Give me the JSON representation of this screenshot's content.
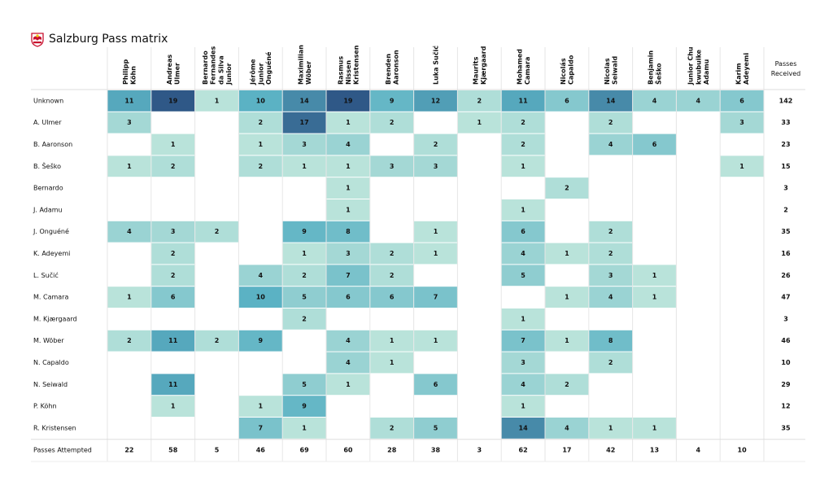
{
  "title": "Salzburg Pass matrix",
  "logo_icon": "red-bull-salzburg-crest",
  "chart_data": {
    "type": "heatmap",
    "title": "Salzburg Pass matrix",
    "columns": [
      [
        "Philipp",
        "Köhn"
      ],
      [
        "Andreas",
        "Ulmer"
      ],
      [
        "Bernardo",
        "Fernandes",
        "da Silva",
        "Junior"
      ],
      [
        "Jérôme",
        "Junior",
        "Onguéné"
      ],
      [
        "Maximilian",
        "Wöber"
      ],
      [
        "Rasmus",
        "Nissen",
        "Kristensen"
      ],
      [
        "Brenden",
        "Aaronson"
      ],
      [
        "Luka Sučić"
      ],
      [
        "Maurits",
        "Kjærgaard"
      ],
      [
        "Mohamed",
        "Camara"
      ],
      [
        "Nicolás",
        "Capaldo"
      ],
      [
        "Nicolas",
        "Seiwald"
      ],
      [
        "Benjamin",
        "Šeško"
      ],
      [
        "Junior Chu",
        "kwubuike",
        "Adamu"
      ],
      [
        "Karim",
        "Adeyemi"
      ]
    ],
    "received_header": [
      "Passes",
      "Received"
    ],
    "rows": [
      {
        "label": "Unknown",
        "values": [
          11,
          19,
          1,
          10,
          14,
          19,
          9,
          12,
          2,
          11,
          6,
          14,
          4,
          4,
          6
        ],
        "received": 142
      },
      {
        "label": "A. Ulmer",
        "values": [
          3,
          null,
          null,
          2,
          17,
          1,
          2,
          null,
          1,
          2,
          null,
          2,
          null,
          null,
          3
        ],
        "received": 33
      },
      {
        "label": "B. Aaronson",
        "values": [
          null,
          1,
          null,
          1,
          3,
          4,
          null,
          2,
          null,
          2,
          null,
          4,
          6,
          null,
          null
        ],
        "received": 23
      },
      {
        "label": "B. Šeško",
        "values": [
          1,
          2,
          null,
          2,
          1,
          1,
          3,
          3,
          null,
          1,
          null,
          null,
          null,
          null,
          1
        ],
        "received": 15
      },
      {
        "label": "Bernardo",
        "values": [
          null,
          null,
          null,
          null,
          null,
          1,
          null,
          null,
          null,
          null,
          2,
          null,
          null,
          null,
          null
        ],
        "received": 3
      },
      {
        "label": "J. Adamu",
        "values": [
          null,
          null,
          null,
          null,
          null,
          1,
          null,
          null,
          null,
          1,
          null,
          null,
          null,
          null,
          null
        ],
        "received": 2
      },
      {
        "label": "J. Onguéné",
        "values": [
          4,
          3,
          2,
          null,
          9,
          8,
          null,
          1,
          null,
          6,
          null,
          2,
          null,
          null,
          null
        ],
        "received": 35
      },
      {
        "label": "K. Adeyemi",
        "values": [
          null,
          2,
          null,
          null,
          1,
          3,
          2,
          1,
          null,
          4,
          1,
          2,
          null,
          null,
          null
        ],
        "received": 16
      },
      {
        "label": "L. Sučić",
        "values": [
          null,
          2,
          null,
          4,
          2,
          7,
          2,
          null,
          null,
          5,
          null,
          3,
          1,
          null,
          null
        ],
        "received": 26
      },
      {
        "label": "M. Camara",
        "values": [
          1,
          6,
          null,
          10,
          5,
          6,
          6,
          7,
          null,
          null,
          1,
          4,
          1,
          null,
          null
        ],
        "received": 47
      },
      {
        "label": "M. Kjærgaard",
        "values": [
          null,
          null,
          null,
          null,
          2,
          null,
          null,
          null,
          null,
          1,
          null,
          null,
          null,
          null,
          null
        ],
        "received": 3
      },
      {
        "label": "M. Wöber",
        "values": [
          2,
          11,
          2,
          9,
          null,
          4,
          1,
          1,
          null,
          7,
          1,
          8,
          null,
          null,
          null
        ],
        "received": 46
      },
      {
        "label": "N. Capaldo",
        "values": [
          null,
          null,
          null,
          null,
          null,
          4,
          1,
          null,
          null,
          3,
          null,
          2,
          null,
          null,
          null
        ],
        "received": 10
      },
      {
        "label": "N. Seiwald",
        "values": [
          null,
          11,
          null,
          null,
          5,
          1,
          null,
          6,
          null,
          4,
          2,
          null,
          null,
          null,
          null
        ],
        "received": 29
      },
      {
        "label": "P. Köhn",
        "values": [
          null,
          1,
          null,
          1,
          9,
          null,
          null,
          null,
          null,
          1,
          null,
          null,
          null,
          null,
          null
        ],
        "received": 12
      },
      {
        "label": "R. Kristensen",
        "values": [
          null,
          null,
          null,
          7,
          1,
          null,
          2,
          5,
          null,
          14,
          4,
          1,
          1,
          null,
          null
        ],
        "received": 35
      }
    ],
    "attempted_label": "Passes Attempted",
    "attempted": [
      22,
      58,
      5,
      46,
      69,
      60,
      28,
      38,
      3,
      62,
      17,
      42,
      13,
      4,
      10
    ],
    "color_scale": [
      "#b9e3da",
      "#2f5887"
    ],
    "color_max": 19
  }
}
